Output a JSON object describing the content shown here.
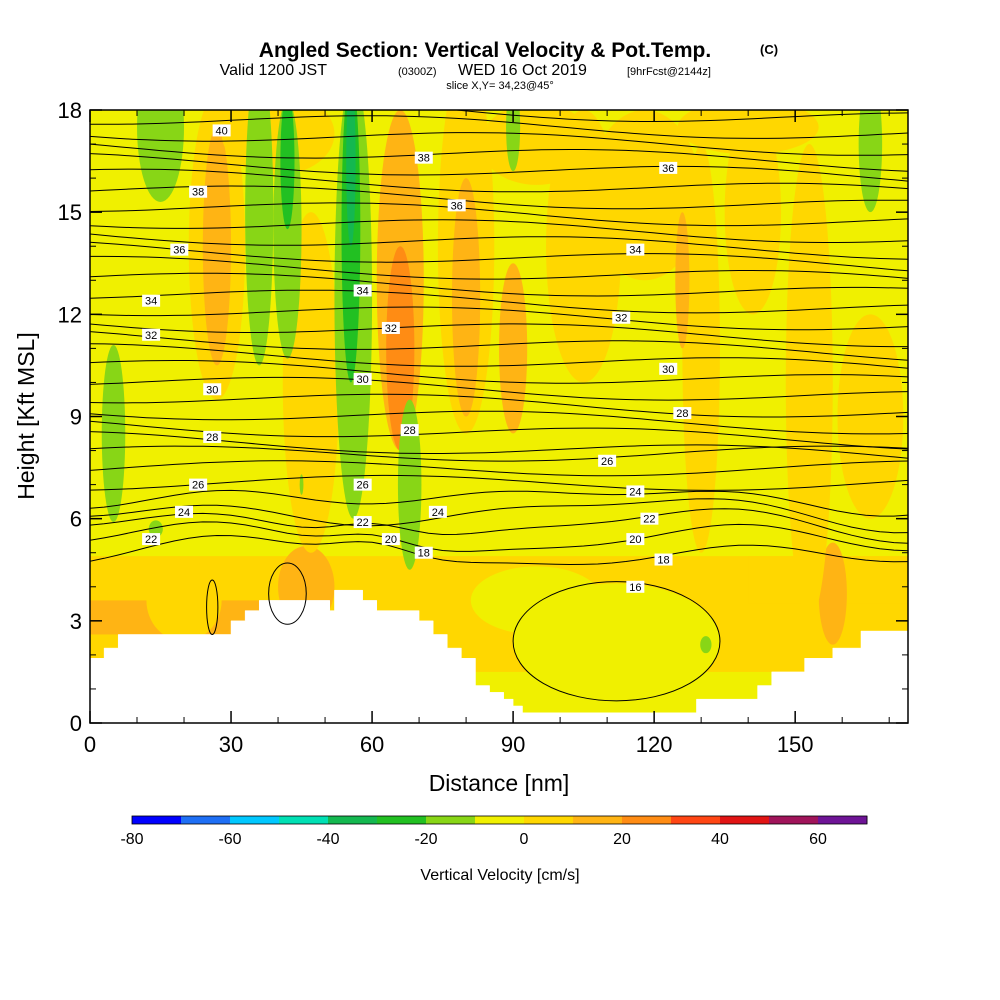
{
  "chart_data": {
    "type": "heatmap",
    "title": "Angled Section: Vertical Velocity & Pot.Temp.",
    "title_tag": "(C)",
    "subtitle": {
      "lead": "Valid 1200 JST",
      "utc": "(0300Z)",
      "date": "WED 16 Oct 2019",
      "fcst": "[9hrFcst@2144z]"
    },
    "slice_label": "slice X,Y= 34,23@45°",
    "xlabel": "Distance [nm]",
    "ylabel": "Height [Kft MSL]",
    "xlim": [
      0,
      174
    ],
    "ylim": [
      0,
      18
    ],
    "x_ticks": [
      "0",
      "30",
      "60",
      "90",
      "120",
      "150"
    ],
    "y_ticks": [
      "0",
      "3",
      "6",
      "9",
      "12",
      "15",
      "18"
    ],
    "colorbar": {
      "label": "Vertical Velocity [cm/s]",
      "tick_labels": [
        "-80",
        "-60",
        "-40",
        "-20",
        "0",
        "20",
        "40",
        "60"
      ],
      "colors": [
        "#0000ff",
        "#1e6ff5",
        "#00c8ff",
        "#00e0b4",
        "#14b850",
        "#22c022",
        "#88d616",
        "#f0f000",
        "#ffd700",
        "#ffb414",
        "#ff8c14",
        "#ff4614",
        "#e11414",
        "#a0145a",
        "#6e1496"
      ]
    },
    "field_colors": {
      "base": "#f0f000",
      "weak_up": "#ffd700",
      "up": "#ffb414",
      "strong_up": "#ff8c14",
      "weak_down": "#88d616",
      "down": "#22c022",
      "strong_down": "#14b850",
      "terrain": "#ffffff"
    },
    "terrain_profile": [
      [
        0,
        1.9
      ],
      [
        3,
        1.9
      ],
      [
        3,
        2.2
      ],
      [
        6,
        2.2
      ],
      [
        6,
        2.6
      ],
      [
        30,
        2.6
      ],
      [
        30,
        3
      ],
      [
        33,
        3
      ],
      [
        33,
        3.3
      ],
      [
        36,
        3.3
      ],
      [
        36,
        3.6
      ],
      [
        51,
        3.6
      ],
      [
        51,
        3.3
      ],
      [
        52,
        3.3
      ],
      [
        52,
        3.9
      ],
      [
        58,
        3.9
      ],
      [
        58,
        3.6
      ],
      [
        61,
        3.6
      ],
      [
        61,
        3.3
      ],
      [
        70,
        3.3
      ],
      [
        70,
        3
      ],
      [
        73,
        3
      ],
      [
        73,
        2.6
      ],
      [
        76,
        2.6
      ],
      [
        76,
        2.2
      ],
      [
        79,
        2.2
      ],
      [
        79,
        1.9
      ],
      [
        82,
        1.9
      ],
      [
        82,
        1.1
      ],
      [
        85,
        1.1
      ],
      [
        85,
        0.9
      ],
      [
        88,
        0.9
      ],
      [
        88,
        0.7
      ],
      [
        90,
        0.7
      ],
      [
        90,
        0.5
      ],
      [
        92,
        0.5
      ],
      [
        92,
        0.3
      ],
      [
        129,
        0.3
      ],
      [
        129,
        0.7
      ],
      [
        142,
        0.7
      ],
      [
        142,
        1.1
      ],
      [
        145,
        1.1
      ],
      [
        145,
        1.5
      ],
      [
        152,
        1.5
      ],
      [
        152,
        1.9
      ],
      [
        158,
        1.9
      ],
      [
        158,
        2.2
      ],
      [
        164,
        2.2
      ],
      [
        164,
        2.7
      ],
      [
        174,
        2.7
      ]
    ],
    "theta_levels": [
      16,
      18,
      20,
      22,
      24,
      26,
      28,
      30,
      32,
      34,
      36,
      38,
      40
    ],
    "theta_labels": [
      {
        "text": "40",
        "x": 28,
        "y": 17.4
      },
      {
        "text": "38",
        "x": 23,
        "y": 15.6
      },
      {
        "text": "36",
        "x": 19,
        "y": 13.9
      },
      {
        "text": "34",
        "x": 13,
        "y": 12.4
      },
      {
        "text": "32",
        "x": 13,
        "y": 11.4
      },
      {
        "text": "30",
        "x": 26,
        "y": 9.8
      },
      {
        "text": "28",
        "x": 26,
        "y": 8.4
      },
      {
        "text": "26",
        "x": 23,
        "y": 7
      },
      {
        "text": "24",
        "x": 20,
        "y": 6.2
      },
      {
        "text": "22",
        "x": 13,
        "y": 5.4
      },
      {
        "text": "34",
        "x": 58,
        "y": 12.7
      },
      {
        "text": "32",
        "x": 64,
        "y": 11.6
      },
      {
        "text": "30",
        "x": 58,
        "y": 10.1
      },
      {
        "text": "28",
        "x": 68,
        "y": 8.6
      },
      {
        "text": "26",
        "x": 58,
        "y": 7
      },
      {
        "text": "24",
        "x": 74,
        "y": 6.2
      },
      {
        "text": "22",
        "x": 58,
        "y": 5.9
      },
      {
        "text": "20",
        "x": 64,
        "y": 5.4
      },
      {
        "text": "18",
        "x": 71,
        "y": 5
      },
      {
        "text": "38",
        "x": 71,
        "y": 16.6
      },
      {
        "text": "36",
        "x": 78,
        "y": 15.2
      },
      {
        "text": "36",
        "x": 123,
        "y": 16.3
      },
      {
        "text": "34",
        "x": 116,
        "y": 13.9
      },
      {
        "text": "32",
        "x": 113,
        "y": 11.9
      },
      {
        "text": "30",
        "x": 123,
        "y": 10.4
      },
      {
        "text": "28",
        "x": 126,
        "y": 9.1
      },
      {
        "text": "26",
        "x": 110,
        "y": 7.7
      },
      {
        "text": "24",
        "x": 116,
        "y": 6.8
      },
      {
        "text": "22",
        "x": 119,
        "y": 6
      },
      {
        "text": "20",
        "x": 116,
        "y": 5.4
      },
      {
        "text": "18",
        "x": 122,
        "y": 4.8
      },
      {
        "text": "16",
        "x": 116,
        "y": 4
      }
    ]
  }
}
